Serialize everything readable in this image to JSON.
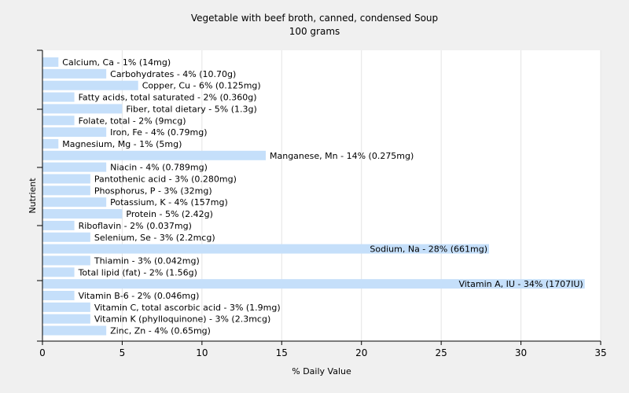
{
  "chart_data": {
    "type": "bar",
    "orientation": "horizontal",
    "title": "Vegetable with beef broth, canned, condensed Soup",
    "subtitle": "100 grams",
    "xlabel": "% Daily Value",
    "ylabel": "Nutrient",
    "xlim": [
      0,
      35
    ],
    "xticks": [
      0,
      5,
      10,
      15,
      20,
      25,
      30,
      35
    ],
    "grid": "vertical",
    "bar_color": "#c5dffa",
    "categories": [
      "Calcium, Ca",
      "Carbohydrates",
      "Copper, Cu",
      "Fatty acids, total saturated",
      "Fiber, total dietary",
      "Folate, total",
      "Iron, Fe",
      "Magnesium, Mg",
      "Manganese, Mn",
      "Niacin",
      "Pantothenic acid",
      "Phosphorus, P",
      "Potassium, K",
      "Protein",
      "Riboflavin",
      "Selenium, Se",
      "Sodium, Na",
      "Thiamin",
      "Total lipid (fat)",
      "Vitamin A, IU",
      "Vitamin B-6",
      "Vitamin C, total ascorbic acid",
      "Vitamin K (phylloquinone)",
      "Zinc, Zn"
    ],
    "values": [
      1,
      4,
      6,
      2,
      5,
      2,
      4,
      1,
      14,
      4,
      3,
      3,
      4,
      5,
      2,
      3,
      28,
      3,
      2,
      34,
      2,
      3,
      3,
      4
    ],
    "labels": [
      "Calcium, Ca - 1% (14mg)",
      "Carbohydrates - 4% (10.70g)",
      "Copper, Cu - 6% (0.125mg)",
      "Fatty acids, total saturated - 2% (0.360g)",
      "Fiber, total dietary - 5% (1.3g)",
      "Folate, total - 2% (9mcg)",
      "Iron, Fe - 4% (0.79mg)",
      "Magnesium, Mg - 1% (5mg)",
      "Manganese, Mn - 14% (0.275mg)",
      "Niacin - 4% (0.789mg)",
      "Pantothenic acid - 3% (0.280mg)",
      "Phosphorus, P - 3% (32mg)",
      "Potassium, K - 4% (157mg)",
      "Protein - 5% (2.42g)",
      "Riboflavin - 2% (0.037mg)",
      "Selenium, Se - 3% (2.2mcg)",
      "Sodium, Na - 28% (661mg)",
      "Thiamin - 3% (0.042mg)",
      "Total lipid (fat) - 2% (1.56g)",
      "Vitamin A, IU - 34% (1707IU)",
      "Vitamin B-6 - 2% (0.046mg)",
      "Vitamin C, total ascorbic acid - 3% (1.9mg)",
      "Vitamin K (phylloquinone) - 3% (2.3mcg)",
      "Zinc, Zn - 4% (0.65mg)"
    ]
  }
}
